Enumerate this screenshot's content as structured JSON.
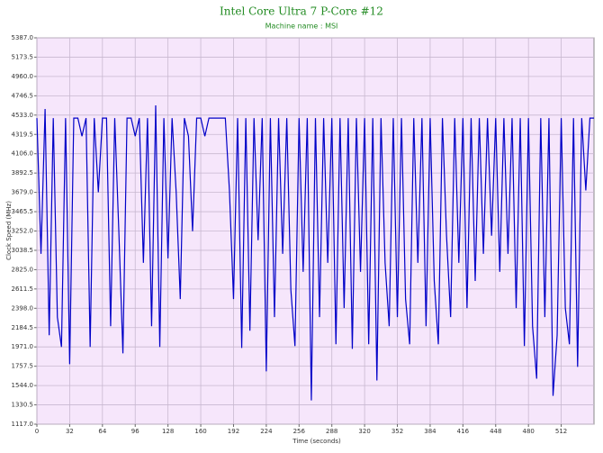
{
  "chart_data": {
    "type": "line",
    "title": "Intel Core Ultra 7 P-Core #12",
    "subtitle": "Machine name : MSI",
    "x_label": "Time (seconds)",
    "y_label": "Clock Speed (MHz)",
    "xlim": [
      0,
      544
    ],
    "xticks": [
      0,
      32,
      64,
      96,
      128,
      160,
      192,
      224,
      256,
      288,
      320,
      352,
      384,
      416,
      448,
      480,
      512
    ],
    "ylim": [
      1117,
      5387
    ],
    "yticks": [
      {
        "value": 1117,
        "label": "1117.0"
      },
      1330.5,
      {
        "value": 1544,
        "label": "1544.0"
      },
      1757.5,
      {
        "value": 1971,
        "label": "1971.0"
      },
      2184.5,
      {
        "value": 2398,
        "label": "2398.0"
      },
      2611.5,
      {
        "value": 2825,
        "label": "2825.0"
      },
      3038.5,
      {
        "value": 3252,
        "label": "3252.0"
      },
      3465.5,
      {
        "value": 3679,
        "label": "3679.0"
      },
      3892.5,
      {
        "value": 4106,
        "label": "4106.0"
      },
      4319.5,
      {
        "value": 4533,
        "label": "4533.0"
      },
      4746.5,
      {
        "value": 4960,
        "label": "4960.0"
      },
      5173.5,
      {
        "value": 5387,
        "label": "5387.0"
      }
    ],
    "grid": true,
    "x": [
      0,
      4,
      8,
      12,
      16,
      20,
      24,
      28,
      32,
      36,
      40,
      44,
      48,
      52,
      56,
      60,
      64,
      68,
      72,
      76,
      80,
      84,
      88,
      92,
      96,
      100,
      104,
      108,
      112,
      116,
      120,
      124,
      128,
      132,
      136,
      140,
      144,
      148,
      152,
      156,
      160,
      164,
      168,
      172,
      176,
      180,
      184,
      188,
      192,
      196,
      200,
      204,
      208,
      212,
      216,
      220,
      224,
      228,
      232,
      236,
      240,
      244,
      248,
      252,
      256,
      260,
      264,
      268,
      272,
      276,
      280,
      284,
      288,
      292,
      296,
      300,
      304,
      308,
      312,
      316,
      320,
      324,
      328,
      332,
      336,
      340,
      344,
      348,
      352,
      356,
      360,
      364,
      368,
      372,
      376,
      380,
      384,
      388,
      392,
      396,
      400,
      404,
      408,
      412,
      416,
      420,
      424,
      428,
      432,
      436,
      440,
      444,
      448,
      452,
      456,
      460,
      464,
      468,
      472,
      476,
      480,
      484,
      488,
      492,
      496,
      500,
      504,
      508,
      512,
      516,
      520,
      524,
      528,
      532,
      536,
      540,
      544
    ],
    "series": [
      {
        "name": "P-Core #12",
        "color": "#0000c8",
        "values": [
          4500,
          3000,
          4600,
          2100,
          4500,
          2300,
          1970,
          4500,
          1780,
          4500,
          4500,
          4300,
          4500,
          1970,
          4500,
          3680,
          4500,
          4500,
          2200,
          4500,
          3250,
          1900,
          4500,
          4500,
          4300,
          4500,
          2900,
          4500,
          2200,
          4640,
          1970,
          4500,
          2950,
          4500,
          3680,
          2500,
          4500,
          4300,
          3250,
          4500,
          4500,
          4300,
          4500,
          4500,
          4500,
          4500,
          4500,
          3700,
          2500,
          4500,
          1960,
          4500,
          2150,
          4500,
          3150,
          4500,
          1700,
          4500,
          2300,
          4500,
          3000,
          4500,
          2600,
          1980,
          4500,
          2800,
          4500,
          1380,
          4500,
          2300,
          4500,
          2900,
          4500,
          2000,
          4500,
          2400,
          4500,
          1950,
          4500,
          2800,
          4500,
          2000,
          4500,
          1600,
          4500,
          2900,
          2200,
          4500,
          2300,
          4500,
          2500,
          2000,
          4500,
          2900,
          4500,
          2200,
          4500,
          2700,
          2000,
          4500,
          3200,
          2300,
          4500,
          2900,
          4500,
          2400,
          4500,
          2700,
          4500,
          3000,
          4500,
          3200,
          4500,
          2800,
          4500,
          3000,
          4500,
          2400,
          4500,
          1980,
          4500,
          2200,
          1620,
          4500,
          2300,
          4500,
          1430,
          2100,
          4500,
          2400,
          2000,
          4500,
          1750,
          4500,
          3700,
          4500,
          4500
        ]
      }
    ]
  }
}
